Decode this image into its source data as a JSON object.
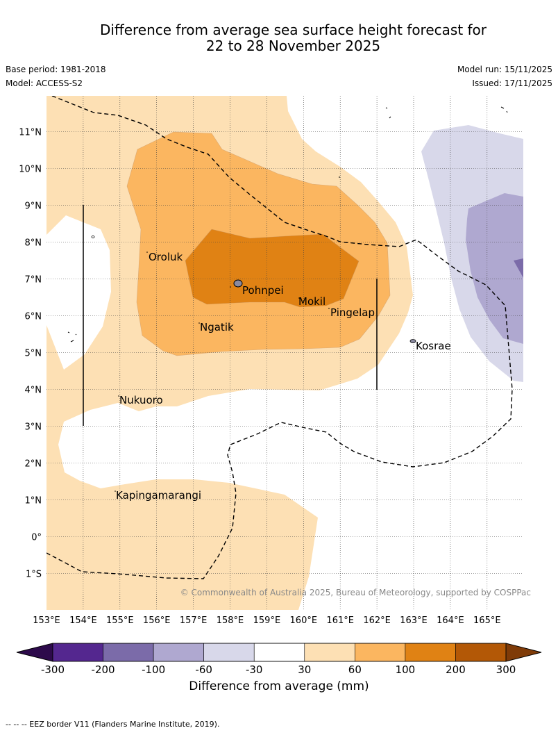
{
  "title": {
    "line1": "Difference from average sea surface height forecast for",
    "line2": "22 to 28 November 2025"
  },
  "meta": {
    "base_period": "Base period: 1981-2018",
    "model": "Model: ACCESS-S2",
    "model_run": "Model run: 15/11/2025",
    "issued": "Issued: 17/11/2025"
  },
  "axes": {
    "lon_ticks": [
      "153°E",
      "154°E",
      "155°E",
      "156°E",
      "157°E",
      "158°E",
      "159°E",
      "160°E",
      "161°E",
      "162°E",
      "163°E",
      "164°E",
      "165°E"
    ],
    "lat_ticks": [
      "11°N",
      "10°N",
      "9°N",
      "8°N",
      "7°N",
      "6°N",
      "5°N",
      "4°N",
      "3°N",
      "2°N",
      "1°N",
      "0°",
      "1°S"
    ]
  },
  "places": [
    {
      "name": "Oroluk"
    },
    {
      "name": "Pohnpei"
    },
    {
      "name": "Mokil"
    },
    {
      "name": "Pingelap"
    },
    {
      "name": "Ngatik"
    },
    {
      "name": "Kosrae"
    },
    {
      "name": "Nukuoro"
    },
    {
      "name": "Kapingamarangi"
    }
  ],
  "copyright": "© Commonwealth of Australia 2025, Bureau of Meteorology, supported by COSPPac",
  "colorbar": {
    "ticks": [
      "-300",
      "-200",
      "-100",
      "-60",
      "-30",
      "30",
      "60",
      "100",
      "200",
      "300"
    ],
    "label": "Difference from average (mm)",
    "colors": {
      "below_min": "#2d0a4b",
      "c1": "#54278f",
      "c2": "#7b6ba9",
      "c3": "#afa8d0",
      "c4": "#d8d8ea",
      "c5": "#ffffff",
      "c6": "#fde0b4",
      "c7": "#fbb660",
      "c8": "#e08214",
      "c9": "#b35806",
      "above_max": "#7f3b08"
    }
  },
  "footer": "-- -- -- EEZ border V11 (Flanders Marine Institute, 2019)."
}
